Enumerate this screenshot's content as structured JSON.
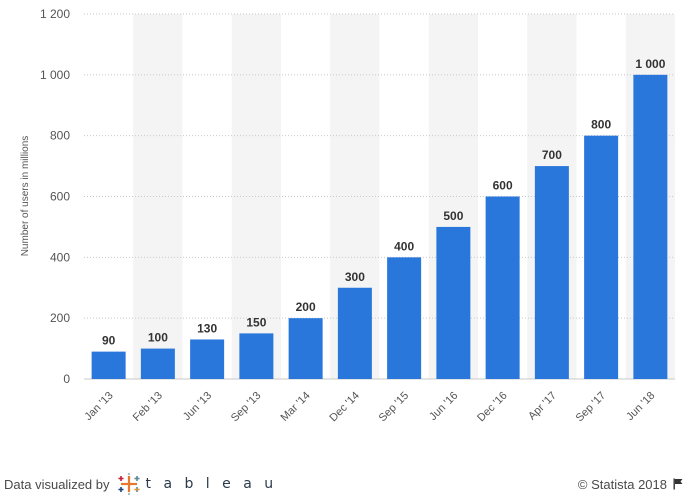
{
  "chart_data": {
    "type": "bar",
    "categories": [
      "Jan '13",
      "Feb '13",
      "Jun '13",
      "Sep '13",
      "Mar '14",
      "Dec '14",
      "Sep '15",
      "Jun '16",
      "Dec '16",
      "Apr '17",
      "Sep '17",
      "Jun '18"
    ],
    "values": [
      90,
      100,
      130,
      150,
      200,
      300,
      400,
      500,
      600,
      700,
      800,
      1000
    ],
    "value_labels": [
      "90",
      "100",
      "130",
      "150",
      "200",
      "300",
      "400",
      "500",
      "600",
      "700",
      "800",
      "1 000"
    ],
    "title": "",
    "xlabel": "",
    "ylabel": "Number of users in millions",
    "ylim": [
      0,
      1200
    ],
    "yticks": [
      0,
      200,
      400,
      600,
      800,
      1000,
      1200
    ],
    "ytick_labels": [
      "0",
      "200",
      "400",
      "600",
      "800",
      "1 000",
      "1 200"
    ],
    "grid": true,
    "bar_color": "#2a77dc",
    "stripe_color": "#f4f4f4",
    "grid_color": "#c8c8c8"
  },
  "footer": {
    "visualized_by": "Data visualized by",
    "tableau_word": "t a b l e a u",
    "copyright": "© Statista 2018"
  }
}
